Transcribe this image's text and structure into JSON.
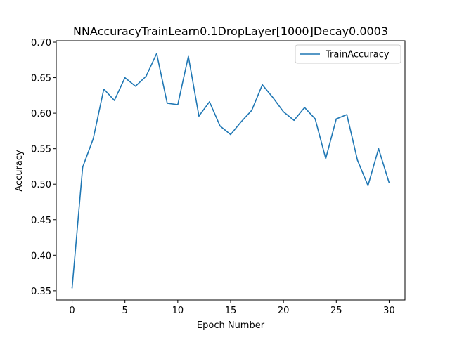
{
  "chart_data": {
    "type": "line",
    "title": "NNAccuracyTrainLearn0.1DropLayer[1000]Decay0.0003",
    "xlabel": "Epoch Number",
    "ylabel": "Accuracy",
    "xlim": [
      -1.5,
      31.5
    ],
    "ylim": [
      0.337,
      0.702
    ],
    "xticks": [
      0,
      5,
      10,
      15,
      20,
      25,
      30
    ],
    "xtick_labels": [
      "0",
      "5",
      "10",
      "15",
      "20",
      "25",
      "30"
    ],
    "yticks": [
      0.35,
      0.4,
      0.45,
      0.5,
      0.55,
      0.6,
      0.65,
      0.7
    ],
    "ytick_labels": [
      "0.35",
      "0.40",
      "0.45",
      "0.50",
      "0.55",
      "0.60",
      "0.65",
      "0.70"
    ],
    "grid": false,
    "legend_position": "top-right",
    "series": [
      {
        "name": "TrainAccuracy",
        "color": "#1f77b4",
        "x": [
          0,
          1,
          2,
          3,
          4,
          5,
          6,
          7,
          8,
          9,
          10,
          11,
          12,
          13,
          14,
          15,
          16,
          17,
          18,
          19,
          20,
          21,
          22,
          23,
          24,
          25,
          26,
          27,
          28,
          29,
          30
        ],
        "values": [
          0.354,
          0.524,
          0.564,
          0.634,
          0.618,
          0.65,
          0.638,
          0.652,
          0.684,
          0.614,
          0.612,
          0.68,
          0.596,
          0.616,
          0.582,
          0.57,
          0.588,
          0.604,
          0.64,
          0.622,
          0.602,
          0.59,
          0.608,
          0.592,
          0.536,
          0.592,
          0.598,
          0.534,
          0.498,
          0.55,
          0.502
        ]
      }
    ]
  }
}
